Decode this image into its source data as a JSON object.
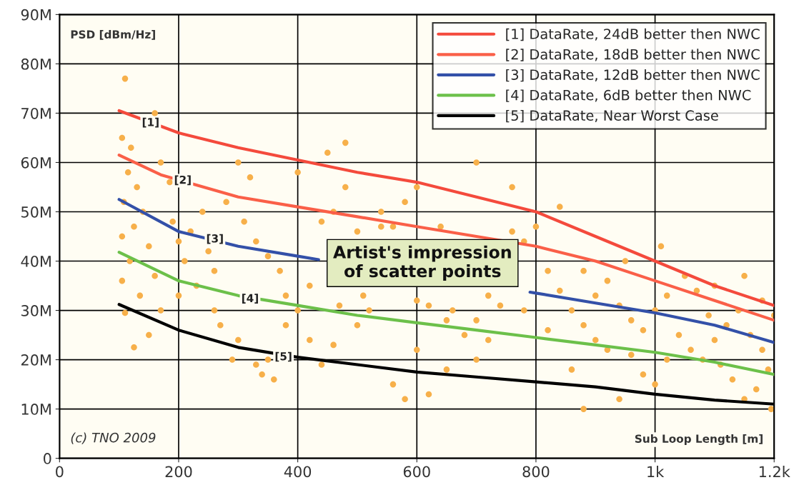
{
  "chart_data": {
    "type": "line",
    "xlabel": "Sub Loop Length [m]",
    "ylabel": "PSD [dBm/Hz]",
    "xlim": [
      0,
      1200
    ],
    "xticks": [
      0,
      200,
      400,
      600,
      800,
      {
        "value": 1000,
        "label": "1k"
      },
      {
        "value": 1200,
        "label": "1.2k"
      }
    ],
    "ylim": [
      0,
      90
    ],
    "yticks": [
      0,
      {
        "value": 10,
        "label": "10M"
      },
      {
        "value": 20,
        "label": "20M"
      },
      {
        "value": 30,
        "label": "30M"
      },
      {
        "value": 40,
        "label": "40M"
      },
      {
        "value": 50,
        "label": "50M"
      },
      {
        "value": 60,
        "label": "60M"
      },
      {
        "value": 70,
        "label": "70M"
      },
      {
        "value": 80,
        "label": "80M"
      },
      {
        "value": 90,
        "label": "90M"
      }
    ],
    "grid": true,
    "legend": "top right",
    "series": [
      {
        "type": "scatter",
        "color": "#f7b04a",
        "marker": "circle",
        "x": [
          110,
          105,
          120,
          115,
          130,
          108,
          140,
          125,
          105,
          150,
          118,
          105,
          135,
          110,
          150,
          125,
          160,
          170,
          185,
          190,
          200,
          210,
          220,
          240,
          250,
          230,
          260,
          270,
          300,
          290,
          330,
          350,
          340,
          360,
          300,
          320,
          280,
          310,
          330,
          350,
          370,
          380,
          400,
          420,
          440,
          460,
          480,
          400,
          450,
          480,
          420,
          440,
          460,
          500,
          510,
          520,
          540,
          560,
          580,
          600,
          620,
          640,
          660,
          680,
          700,
          650,
          600,
          560,
          580,
          620,
          700,
          720,
          740,
          760,
          780,
          800,
          820,
          840,
          860,
          880,
          900,
          920,
          860,
          880,
          840,
          900,
          920,
          940,
          960,
          980,
          1000,
          1020,
          1040,
          1060,
          1080,
          1100,
          1120,
          1140,
          1160,
          1180,
          1200,
          1190,
          1170,
          1150,
          1130,
          1110,
          1090,
          1070,
          1050,
          1020,
          1000,
          980,
          960,
          940,
          1150,
          1180,
          760,
          700,
          540,
          500,
          470,
          380,
          260,
          200,
          170,
          160,
          600,
          650,
          720,
          780,
          820,
          880,
          950,
          1010,
          1100,
          1195
        ],
        "values": [
          77,
          65,
          63,
          58,
          55,
          52,
          50,
          47,
          45,
          43,
          40,
          36,
          33,
          29.5,
          25,
          22.5,
          70,
          60,
          56,
          48,
          44,
          40,
          46,
          50,
          42,
          35,
          30,
          27,
          24,
          20,
          19,
          20,
          17,
          16,
          60,
          57,
          52,
          48,
          44,
          41,
          38,
          33,
          30,
          35,
          48,
          50,
          55,
          58,
          62,
          64,
          24,
          19,
          23,
          27,
          33,
          30,
          47,
          47,
          52,
          55,
          31,
          47,
          30,
          25,
          20,
          18,
          22,
          15,
          12,
          13,
          28,
          33,
          31,
          46,
          44,
          47,
          38,
          34,
          30,
          27,
          24,
          22,
          18,
          10,
          51,
          33,
          36,
          31,
          28,
          26,
          30,
          33,
          25,
          22,
          20,
          24,
          27,
          30,
          25,
          22,
          29,
          18,
          14,
          12,
          16,
          19,
          29,
          34,
          37,
          20,
          15,
          17,
          21,
          12,
          37,
          32,
          55,
          60,
          50,
          46,
          31,
          27,
          38,
          33,
          30,
          37,
          32,
          28,
          24,
          30,
          26,
          38,
          40,
          43,
          35,
          10
        ]
      },
      {
        "name": "[1] DataRate, 24dB better then NWC",
        "color": "#f44a3c",
        "x": [
          100,
          200,
          300,
          400,
          500,
          600,
          700,
          800,
          900,
          1000,
          1100,
          1200
        ],
        "values": [
          70.5,
          66,
          63,
          60.5,
          58,
          56,
          53,
          50,
          45,
          40,
          35,
          31
        ]
      },
      {
        "name": "[2] DataRate, 18dB better then NWC",
        "color": "#fa5f48",
        "x": [
          100,
          170,
          300,
          400,
          500,
          600,
          700,
          800,
          900,
          1000,
          1100,
          1200
        ],
        "values": [
          61.5,
          57.5,
          53,
          51,
          49,
          47,
          45,
          43,
          40,
          36,
          32,
          28
        ]
      },
      {
        "name": "[3] DataRate, 12dB better then NWC",
        "color": "#3350a8",
        "x": [
          100,
          200,
          300,
          400,
          435,
          600,
          790,
          800,
          900,
          1000,
          1100,
          1200
        ],
        "values": [
          52.5,
          46,
          43,
          41,
          40.3,
          null,
          33.7,
          33.5,
          31.5,
          29.5,
          27,
          23.5
        ]
      },
      {
        "name": "[4] DataRate, 6dB better then NWC",
        "color": "#6cc04a",
        "x": [
          100,
          200,
          300,
          400,
          500,
          600,
          700,
          800,
          900,
          1000,
          1100,
          1200
        ],
        "values": [
          41.8,
          36,
          33,
          31,
          29,
          27.5,
          26,
          24.5,
          23,
          21.5,
          19.5,
          17
        ]
      },
      {
        "name": "[5] DataRate, Near Worst Case",
        "color": "#000000",
        "x": [
          100,
          200,
          300,
          400,
          500,
          600,
          700,
          800,
          900,
          1000,
          1100,
          1200
        ],
        "values": [
          31.2,
          26,
          22.5,
          20.5,
          19,
          17.5,
          16.5,
          15.5,
          14.5,
          13,
          11.8,
          11
        ]
      }
    ],
    "annotations": [
      {
        "text": "[1]",
        "x": 153,
        "y": 68
      },
      {
        "text": "[2]",
        "x": 207,
        "y": 56.3
      },
      {
        "text": "[3]",
        "x": 261,
        "y": 44.4
      },
      {
        "text": "[4]",
        "x": 320,
        "y": 32.3
      },
      {
        "text": "[5]",
        "x": 376,
        "y": 20.5
      },
      "(c) TNO 2009",
      "Artist's impression\nof scatter points"
    ]
  }
}
